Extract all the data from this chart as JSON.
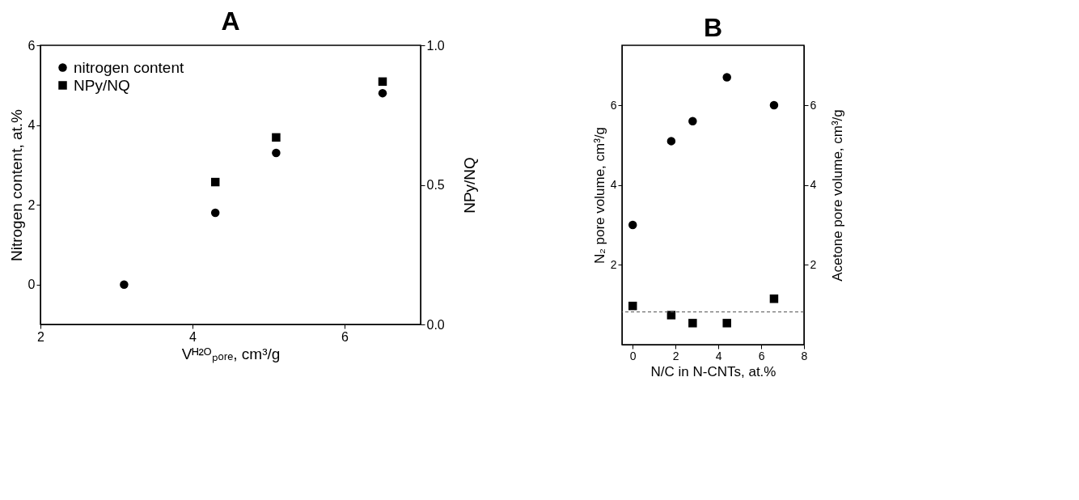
{
  "chart_data": [
    {
      "type": "scatter",
      "title": "A",
      "xlabel": "Vᴴ²ᴼₚₒᵣₑ, cm³/g",
      "ylabel": "Nitrogen content, at.%",
      "y2label": "NPy/NQ",
      "xlim": [
        2,
        7
      ],
      "xticks": [
        2,
        4,
        6
      ],
      "ylim": [
        -1,
        6
      ],
      "yticks": [
        0,
        2,
        4,
        6
      ],
      "y2lim": [
        0,
        1
      ],
      "y2ticks": [
        {
          "value": 0,
          "label": "0.0"
        },
        {
          "value": 0.5,
          "label": "0.5"
        },
        {
          "value": 1,
          "label": "1.0"
        }
      ],
      "legend": "top left",
      "grid": false,
      "series": [
        {
          "name": "nitrogen content",
          "marker": "circle",
          "color": "#000000",
          "x": [
            3.1,
            4.3,
            5.1,
            6.5
          ],
          "values": [
            0,
            1.8,
            3.3,
            4.8
          ]
        },
        {
          "name": "NPy/NQ",
          "marker": "square",
          "color": "#000000",
          "axis": "y2",
          "x": [
            4.3,
            5.1,
            6.5
          ],
          "values": [
            0.51,
            0.67,
            0.87
          ]
        }
      ]
    },
    {
      "type": "scatter",
      "title": "B",
      "xlabel": "N/C in N-CNTs, at.%",
      "ylabel": "N₂ pore volume, cm³/g",
      "y2label": "Acetone pore volume, cm³/g",
      "xlim": [
        -0.5,
        8
      ],
      "xticks": [
        0,
        2,
        4,
        6,
        8
      ],
      "ylim": [
        0,
        7.5
      ],
      "yticks": [
        2,
        4,
        6
      ],
      "y2lim": [
        0,
        7.5
      ],
      "y2ticks": [
        2,
        4,
        6
      ],
      "grid": false,
      "legend": false,
      "ref_lines": [
        {
          "axis": "y",
          "value": 0.82,
          "line_style": "dashed",
          "color": "#555555"
        }
      ],
      "series": [
        {
          "marker": "circle",
          "color": "#000000",
          "axis": "y2",
          "x": [
            0,
            1.8,
            2.8,
            4.4,
            6.6
          ],
          "values": [
            3.0,
            5.1,
            5.6,
            6.7,
            6.0
          ]
        },
        {
          "marker": "square",
          "color": "#000000",
          "x": [
            0,
            1.8,
            2.8,
            4.4,
            6.6
          ],
          "values": [
            0.97,
            0.74,
            0.54,
            0.54,
            1.15
          ]
        }
      ]
    }
  ]
}
